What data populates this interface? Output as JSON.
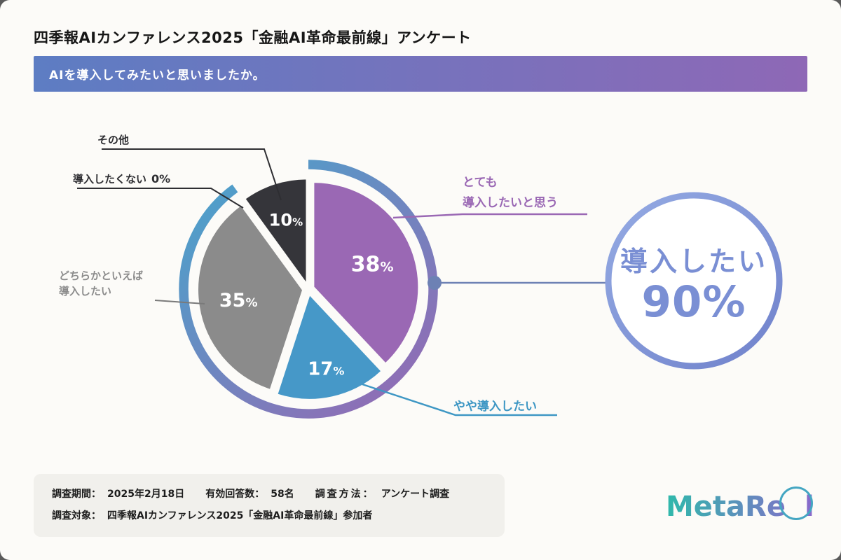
{
  "page": {
    "title": "四季報AIカンファレンス2025「金融AI革命最前線」アンケート",
    "question_banner": "AIを導入してみたいと思いましたか。"
  },
  "chart_data": {
    "type": "pie",
    "title": "AIを導入してみたいと思いましたか。",
    "unit": "%",
    "slices": [
      {
        "label": "とても導入したいと思う",
        "value": 38,
        "color": "#9a68b4"
      },
      {
        "label": "やや導入したい",
        "value": 17,
        "color": "#4698c8"
      },
      {
        "label": "どちらかといえば導入したい",
        "value": 35,
        "color": "#8b8b8b"
      },
      {
        "label": "導入したくない",
        "value": 0
      },
      {
        "label": "その他",
        "value": 10,
        "color": "#35353a"
      }
    ],
    "highlight": {
      "label": "導入したい",
      "value": 90,
      "unit": "%"
    },
    "legend_position": "callouts"
  },
  "callouts": {
    "other": {
      "label": "その他"
    },
    "not_want": {
      "label": "導入したくない",
      "value": "0%"
    },
    "rather": {
      "line1": "どちらかといえば",
      "line2": "導入したい"
    },
    "very": {
      "line1": "とても",
      "line2": "導入したいと思う"
    },
    "somewhat": {
      "label": "やや導入したい"
    }
  },
  "summary_circle": {
    "line1": "導入したい",
    "value": "90",
    "unit": "%"
  },
  "footer": {
    "survey_period_label": "調査期間：",
    "survey_period_value": "2025年2月18日",
    "respondents_label": "有効回答数：",
    "respondents_value": "58名",
    "method_label": "調査方法：",
    "method_value": "アンケート調査",
    "target_label": "調査対象：",
    "target_value": "四季報AIカンファレンス2025「金融AI革命最前線」参加者"
  },
  "logo": {
    "part1": "MetaRe",
    "circled": "a",
    "part2": "l"
  }
}
